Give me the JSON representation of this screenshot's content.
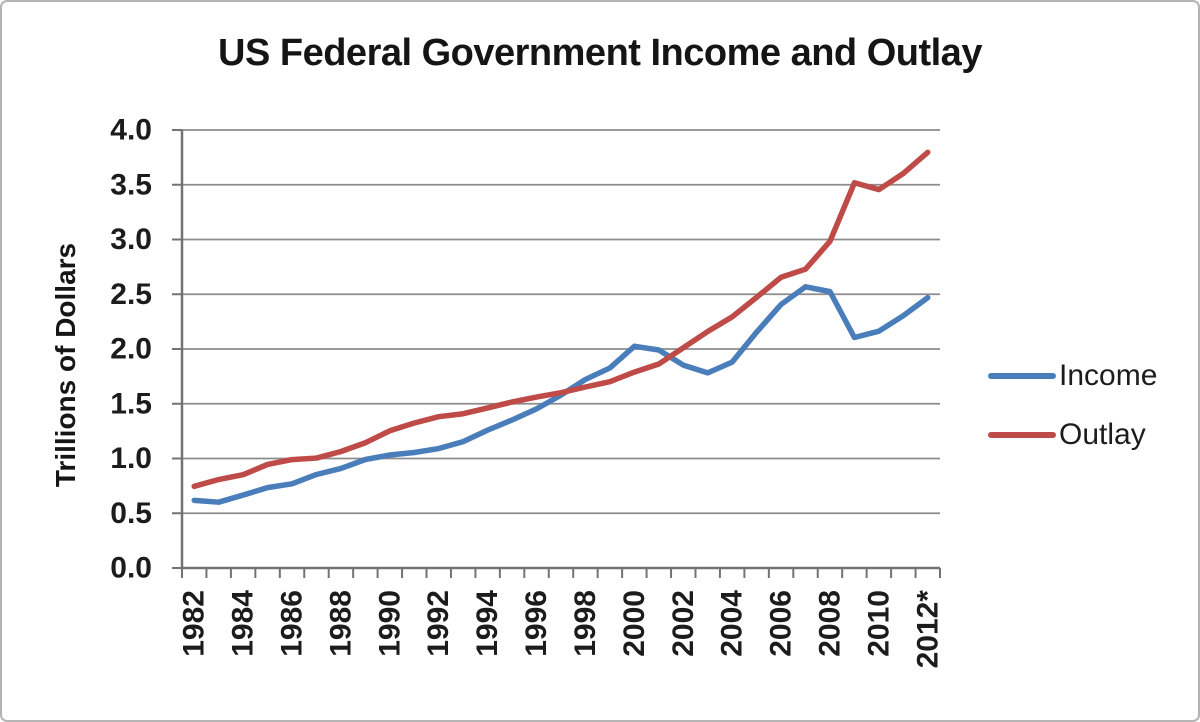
{
  "chart_data": {
    "type": "line",
    "title": "US Federal Government Income and Outlay",
    "ylabel": "Trillions of Dollars",
    "ylim": [
      0,
      4
    ],
    "yticks": [
      0,
      0.5,
      1,
      1.5,
      2,
      2.5,
      3,
      3.5,
      4
    ],
    "x_label_every": 2,
    "categories": [
      "1982",
      "1983",
      "1984",
      "1985",
      "1986",
      "1987",
      "1988",
      "1989",
      "1990",
      "1991",
      "1992",
      "1993",
      "1994",
      "1995",
      "1996",
      "1997",
      "1998",
      "1999",
      "2000",
      "2001",
      "2002",
      "2003",
      "2004",
      "2005",
      "2006",
      "2007",
      "2008",
      "2009",
      "2010",
      "2011",
      "2012*"
    ],
    "series": [
      {
        "name": "Income",
        "color": "#4A7EBB",
        "values": [
          0.618,
          0.601,
          0.666,
          0.734,
          0.769,
          0.854,
          0.909,
          0.991,
          1.032,
          1.055,
          1.091,
          1.154,
          1.259,
          1.352,
          1.453,
          1.579,
          1.722,
          1.827,
          2.025,
          1.991,
          1.853,
          1.782,
          1.88,
          2.154,
          2.407,
          2.568,
          2.524,
          2.105,
          2.163,
          2.304,
          2.469
        ]
      },
      {
        "name": "Outlay",
        "color": "#BE4B48",
        "values": [
          0.746,
          0.808,
          0.852,
          0.946,
          0.99,
          1.004,
          1.064,
          1.144,
          1.253,
          1.324,
          1.382,
          1.409,
          1.462,
          1.516,
          1.561,
          1.601,
          1.653,
          1.702,
          1.789,
          1.863,
          2.011,
          2.16,
          2.293,
          2.472,
          2.655,
          2.729,
          2.983,
          3.518,
          3.456,
          3.603,
          3.796
        ]
      }
    ],
    "legend_position": "right",
    "grid": true,
    "colors": {
      "grid": "#8C8C8C",
      "axis": "#737373",
      "text": "#1C1C1C",
      "figure_border": "#B4B4B4"
    }
  }
}
